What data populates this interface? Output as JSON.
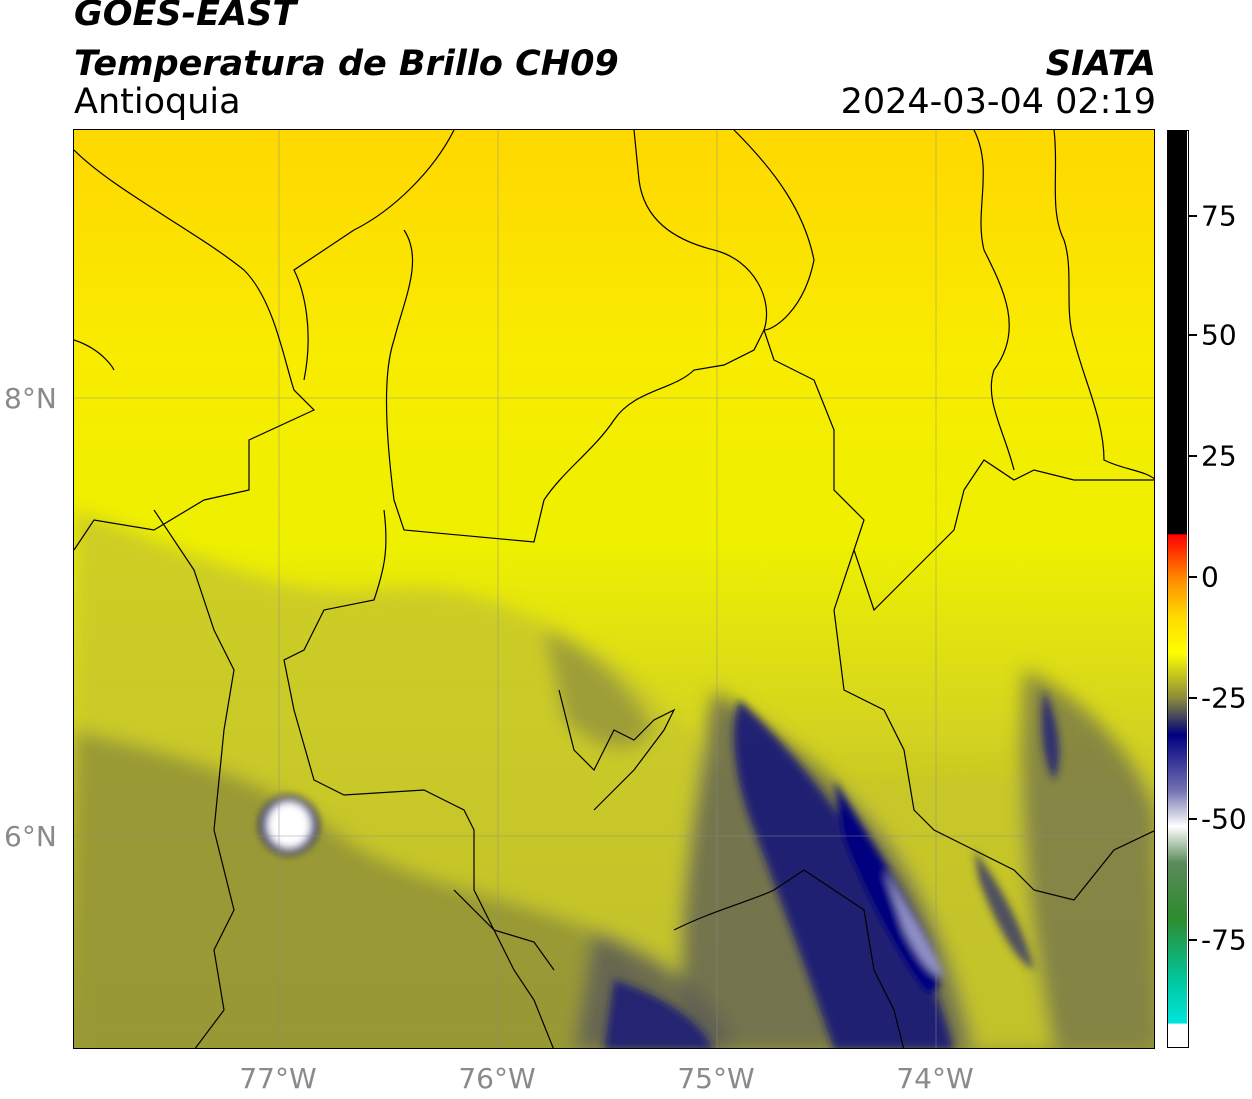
{
  "header": {
    "satellite": "GOES-EAST",
    "product": "Temperatura de Brillo CH09",
    "region": "Antioquia",
    "organization": "SIATA",
    "datetime": "2024-03-04 02:19"
  },
  "map": {
    "latitude_labels": [
      "8°N",
      "6°N"
    ],
    "longitude_labels": [
      "77°W",
      "76°W",
      "75°W",
      "74°W"
    ]
  },
  "colorbar": {
    "labels": [
      "75",
      "50",
      "25",
      "0",
      "-25",
      "-50",
      "-75"
    ],
    "colors": {
      "black": "#000000",
      "red": "#ff0000",
      "orange": "#ff8c00",
      "yellow": "#ffff00",
      "olive": "#8a8a3a",
      "navy": "#000080",
      "white": "#ffffff",
      "green": "#2e8b2e",
      "cyan": "#00e5dc"
    }
  }
}
